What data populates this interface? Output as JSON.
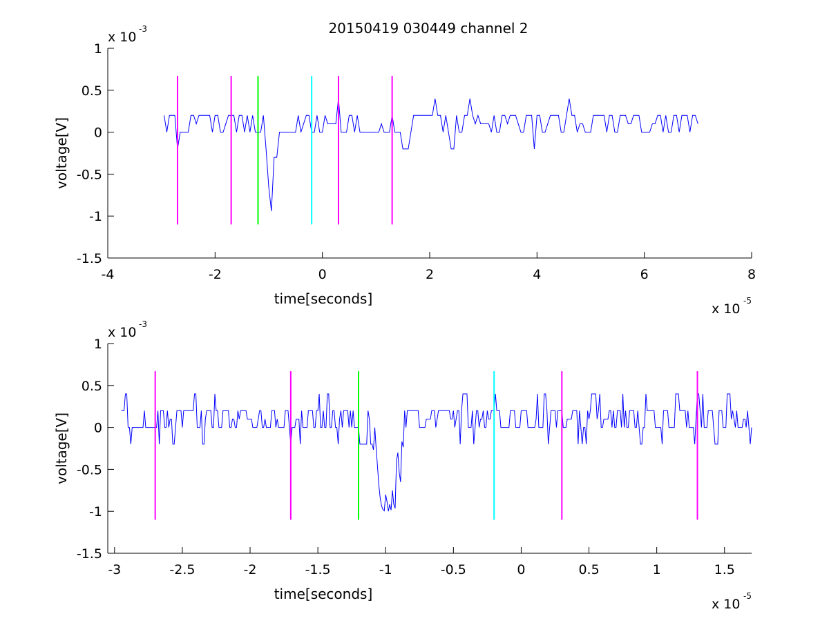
{
  "figure": {
    "title": "20150419 030449 channel 2"
  },
  "chart_data": [
    {
      "type": "line",
      "panel": "top",
      "xlabel": "time[seconds]",
      "ylabel": "voltage[V]",
      "x_exponent_label": {
        "base": "x 10",
        "exp": "-5"
      },
      "y_exponent_label": {
        "base": "x 10",
        "exp": "-3"
      },
      "xlim": [
        -4,
        8
      ],
      "ylim": [
        -1.5,
        1
      ],
      "xticks": [
        -4,
        -2,
        0,
        2,
        4,
        6,
        8
      ],
      "xtick_labels": [
        "-4",
        "-2",
        "0",
        "2",
        "4",
        "6",
        "8"
      ],
      "yticks": [
        -1.5,
        -1,
        -0.5,
        0,
        0.5,
        1
      ],
      "ytick_labels": [
        "-1.5",
        "-1",
        "-0.5",
        "0",
        "0.5",
        "1"
      ],
      "signal": {
        "color": "#0000ff",
        "x_start": -2.95,
        "x_end": 7.0,
        "dx": 0.05,
        "seed": 7,
        "spike_x": -0.97,
        "spike_min": -1.0
      },
      "markers": [
        {
          "x": -2.7,
          "color": "#ff00ff",
          "y0": -1.1,
          "y1": 0.67
        },
        {
          "x": -1.7,
          "color": "#ff00ff",
          "y0": -1.1,
          "y1": 0.67
        },
        {
          "x": -1.2,
          "color": "#00ff00",
          "y0": -1.1,
          "y1": 0.67
        },
        {
          "x": -0.2,
          "color": "#00ffff",
          "y0": -1.1,
          "y1": 0.67
        },
        {
          "x": 0.3,
          "color": "#ff00ff",
          "y0": -1.1,
          "y1": 0.67
        },
        {
          "x": 1.3,
          "color": "#ff00ff",
          "y0": -1.1,
          "y1": 0.67
        }
      ],
      "grid": false
    },
    {
      "type": "line",
      "panel": "bottom",
      "xlabel": "time[seconds]",
      "ylabel": "voltage[V]",
      "x_exponent_label": {
        "base": "x 10",
        "exp": "-5"
      },
      "y_exponent_label": {
        "base": "x 10",
        "exp": "-3"
      },
      "xlim": [
        -3.05,
        1.7
      ],
      "ylim": [
        -1.5,
        1
      ],
      "xticks": [
        -3,
        -2.5,
        -2,
        -1.5,
        -1,
        -0.5,
        0,
        0.5,
        1,
        1.5
      ],
      "xtick_labels": [
        "-3",
        "-2.5",
        "-2",
        "-1.5",
        "-1",
        "-0.5",
        "0",
        "0.5",
        "1",
        "1.5"
      ],
      "yticks": [
        -1.5,
        -1,
        -0.5,
        0,
        0.5,
        1
      ],
      "ytick_labels": [
        "-1.5",
        "-1",
        "-0.5",
        "0",
        "0.5",
        "1"
      ],
      "signal": {
        "color": "#0000ff",
        "x_start": -2.95,
        "x_end": 1.7,
        "dx": 0.01,
        "seed": 13,
        "spike_x": -0.98,
        "spike_min": -1.0
      },
      "markers": [
        {
          "x": -2.7,
          "color": "#ff00ff",
          "y0": -1.1,
          "y1": 0.67
        },
        {
          "x": -1.7,
          "color": "#ff00ff",
          "y0": -1.1,
          "y1": 0.67
        },
        {
          "x": -1.2,
          "color": "#00ff00",
          "y0": -1.1,
          "y1": 0.67
        },
        {
          "x": -0.2,
          "color": "#00ffff",
          "y0": -1.1,
          "y1": 0.67
        },
        {
          "x": 0.3,
          "color": "#ff00ff",
          "y0": -1.1,
          "y1": 0.67
        },
        {
          "x": 1.3,
          "color": "#ff00ff",
          "y0": -1.1,
          "y1": 0.67
        }
      ],
      "grid": false
    }
  ]
}
